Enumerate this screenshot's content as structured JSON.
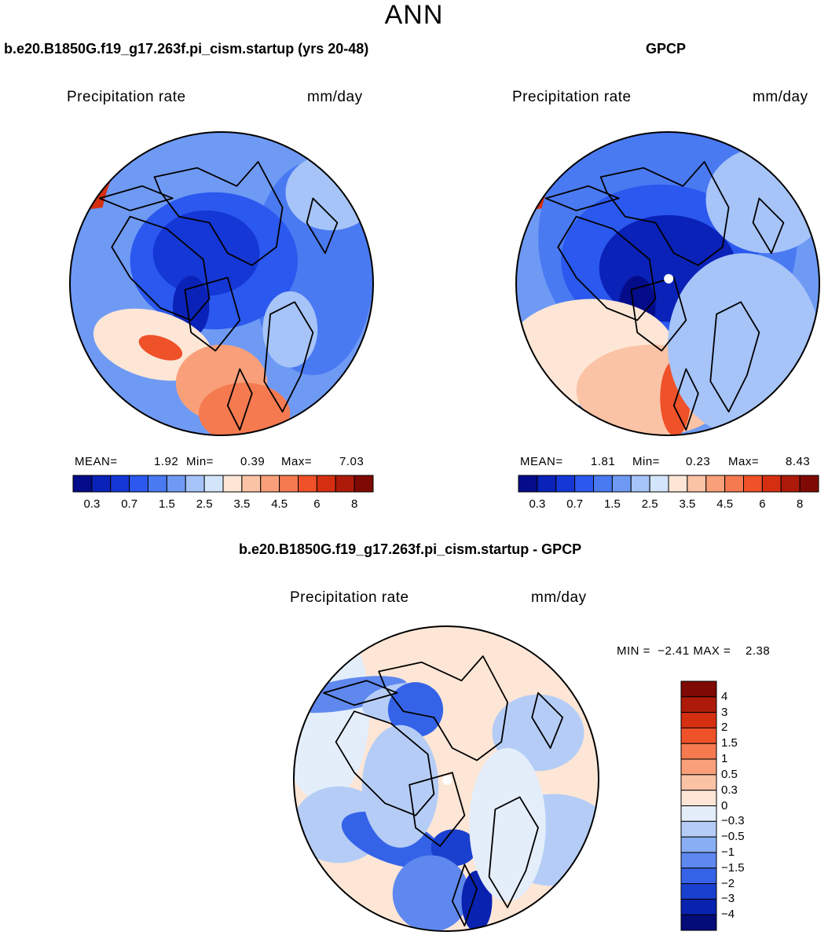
{
  "figure_title": "ANN",
  "panels": [
    {
      "title": "b.e20.B1850G.f19_g17.263f.pi_cism.startup (yrs 20-48)",
      "variable": "Precipitation rate",
      "units": "mm/day",
      "mean_label": "MEAN=",
      "mean_value": "1.92",
      "min_label": "Min=",
      "min_value": "0.39",
      "max_label": "Max=",
      "max_value": "7.03"
    },
    {
      "title": "GPCP",
      "variable": "Precipitation rate",
      "units": "mm/day",
      "mean_label": "MEAN=",
      "mean_value": "1.81",
      "min_label": "Min=",
      "min_value": "0.23",
      "max_label": "Max=",
      "max_value": "8.43"
    },
    {
      "title": "b.e20.B1850G.f19_g17.263f.pi_cism.startup - GPCP",
      "variable": "Precipitation rate",
      "units": "mm/day",
      "minmax_text": "MIN =  −2.41 MAX =    2.38"
    }
  ],
  "chart_data": [
    {
      "type": "heatmap",
      "title": "b.e20.B1850G.f19_g17.263f.pi_cism.startup (yrs 20-48)",
      "projection": "north polar stereographic",
      "colorbar_ticks": [
        "0.3",
        "0.7",
        "1.5",
        "2.5",
        "3.5",
        "4.5",
        "6",
        "8"
      ],
      "colorbar_colors": [
        "#040c8a",
        "#0a22b8",
        "#1537d6",
        "#2b58ee",
        "#4a7af2",
        "#6f9af4",
        "#a6c4f8",
        "#d3e5fb",
        "#fde6d6",
        "#fbc3a6",
        "#f9a07a",
        "#f57a50",
        "#ef5128",
        "#d52f12",
        "#ae1a0a",
        "#7f0a05"
      ],
      "mean": 1.92,
      "min": 0.39,
      "max": 7.03
    },
    {
      "type": "heatmap",
      "title": "GPCP",
      "projection": "north polar stereographic",
      "colorbar_ticks": [
        "0.3",
        "0.7",
        "1.5",
        "2.5",
        "3.5",
        "4.5",
        "6",
        "8"
      ],
      "colorbar_colors": [
        "#040c8a",
        "#0a22b8",
        "#1537d6",
        "#2b58ee",
        "#4a7af2",
        "#6f9af4",
        "#a6c4f8",
        "#d3e5fb",
        "#fde6d6",
        "#fbc3a6",
        "#f9a07a",
        "#f57a50",
        "#ef5128",
        "#d52f12",
        "#ae1a0a",
        "#7f0a05"
      ],
      "mean": 1.81,
      "min": 0.23,
      "max": 8.43
    },
    {
      "type": "heatmap",
      "title": "b.e20.B1850G.f19_g17.263f.pi_cism.startup - GPCP",
      "projection": "north polar stereographic",
      "colorbar_ticks": [
        "4",
        "3",
        "2",
        "1.5",
        "1",
        "0.5",
        "0.3",
        "0",
        "−0.3",
        "−0.5",
        "−1",
        "−1.5",
        "−2",
        "−3",
        "−4"
      ],
      "colorbar_colors": [
        "#7f0a05",
        "#ae1a0a",
        "#d52f12",
        "#ef5128",
        "#f57a50",
        "#f9a07a",
        "#fbc3a6",
        "#fde6d6",
        "#e4eefb",
        "#b5cdf6",
        "#8aaef3",
        "#5f88ef",
        "#3563e8",
        "#1a40cf",
        "#0a22b0",
        "#040c7a"
      ],
      "min": -2.41,
      "max": 2.38
    }
  ]
}
